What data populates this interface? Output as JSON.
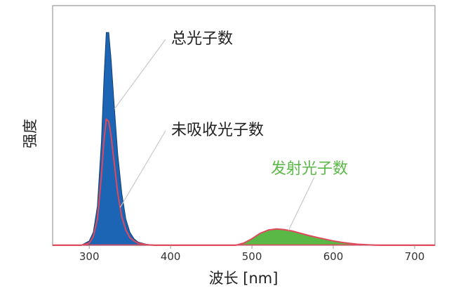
{
  "chart_data": {
    "type": "area",
    "xlabel": "波长 [nm]",
    "ylabel": "强度",
    "xlim": [
      255,
      725
    ],
    "ylim": [
      0,
      1.0
    ],
    "xticks": [
      300,
      400,
      500,
      600,
      700
    ],
    "yticks_shown": false,
    "grid": false,
    "annotations": [
      {
        "text": "总光子数",
        "series": "total",
        "color": "#222222"
      },
      {
        "text": "未吸收光子数",
        "series": "unabsorbed",
        "color": "#222222"
      },
      {
        "text": "发射光子数",
        "series": "emission",
        "color": "#5ab946"
      }
    ],
    "series": [
      {
        "key": "total",
        "fill": "#1c65b5",
        "x": [
          255,
          290,
          300,
          305,
          310,
          315,
          318,
          321,
          324,
          327,
          330,
          335,
          340,
          345,
          350,
          355,
          360,
          370,
          380,
          390
        ],
        "y": [
          0.0,
          0.0,
          0.02,
          0.06,
          0.18,
          0.48,
          0.76,
          0.98,
          0.98,
          0.85,
          0.68,
          0.42,
          0.24,
          0.12,
          0.06,
          0.03,
          0.015,
          0.005,
          0.0,
          0.0
        ]
      },
      {
        "key": "unabsorbed",
        "stroke": "#e0485c",
        "x": [
          255,
          290,
          300,
          305,
          310,
          315,
          318,
          321,
          324,
          327,
          330,
          335,
          340,
          345,
          350,
          355,
          360,
          370,
          380,
          390
        ],
        "y": [
          0.0,
          0.0,
          0.01,
          0.04,
          0.12,
          0.32,
          0.48,
          0.58,
          0.57,
          0.5,
          0.4,
          0.24,
          0.13,
          0.07,
          0.035,
          0.02,
          0.01,
          0.003,
          0.0,
          0.0
        ]
      },
      {
        "key": "emission",
        "fill": "#5ab946",
        "stroke": "#e0485c",
        "x": [
          390,
          480,
          490,
          500,
          510,
          520,
          530,
          540,
          550,
          560,
          570,
          580,
          590,
          600,
          610,
          620,
          630,
          640,
          650,
          660,
          670,
          680,
          725
        ],
        "y": [
          0.0,
          0.0,
          0.01,
          0.03,
          0.055,
          0.07,
          0.075,
          0.072,
          0.065,
          0.055,
          0.045,
          0.036,
          0.028,
          0.02,
          0.014,
          0.009,
          0.005,
          0.003,
          0.001,
          0.0,
          0.0,
          0.0,
          0.0
        ]
      }
    ]
  }
}
